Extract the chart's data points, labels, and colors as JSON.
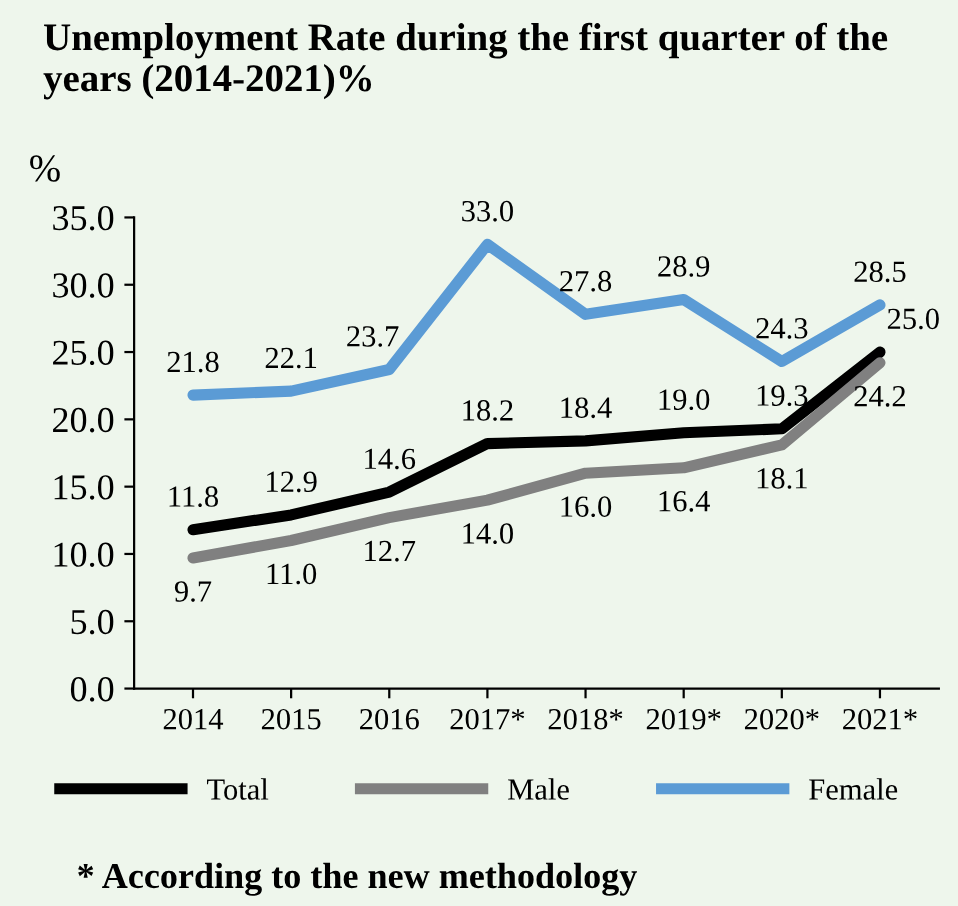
{
  "chart_data": {
    "type": "line",
    "title": "Unemployment Rate during the first quarter of the years (2014-2021)%",
    "ylabel": "%",
    "categories": [
      "2014",
      "2015",
      "2016",
      "2017*",
      "2018*",
      "2019*",
      "2020*",
      "2021*"
    ],
    "series": [
      {
        "name": "Total",
        "color": "#000000",
        "values": [
          11.8,
          12.9,
          14.6,
          18.2,
          18.4,
          19.0,
          19.3,
          25.0
        ],
        "value_labels": [
          "11.8",
          "12.9",
          "14.6",
          "18.2",
          "18.4",
          "19.0",
          "19.3",
          "25.0"
        ]
      },
      {
        "name": "Male",
        "color": "#808080",
        "values": [
          9.7,
          11.0,
          12.7,
          14.0,
          16.0,
          16.4,
          18.1,
          24.2
        ],
        "value_labels": [
          "9.7",
          "11.0",
          "12.7",
          "14.0",
          "16.0",
          "16.4",
          "18.1",
          "24.2"
        ]
      },
      {
        "name": "Female",
        "color": "#5b9bd5",
        "values": [
          21.8,
          22.1,
          23.7,
          33.0,
          27.8,
          28.9,
          24.3,
          28.5
        ],
        "value_labels": [
          "21.8",
          "22.1",
          "23.7",
          "33.0",
          "27.8",
          "28.9",
          "24.3",
          "28.5"
        ]
      }
    ],
    "ylim": [
      0,
      35
    ],
    "yticks": [
      {
        "value": 0,
        "label": "0.0"
      },
      {
        "value": 5,
        "label": "5.0"
      },
      {
        "value": 10,
        "label": "10.0"
      },
      {
        "value": 15,
        "label": "15.0"
      },
      {
        "value": 20,
        "label": "20.0"
      },
      {
        "value": 25,
        "label": "25.0"
      },
      {
        "value": 30,
        "label": "30.0"
      },
      {
        "value": 35,
        "label": "35.0"
      }
    ],
    "grid": false,
    "legend": "bottom",
    "marker": "none",
    "line_style": "solid",
    "annotations": [
      "* According to the new methodology"
    ]
  }
}
